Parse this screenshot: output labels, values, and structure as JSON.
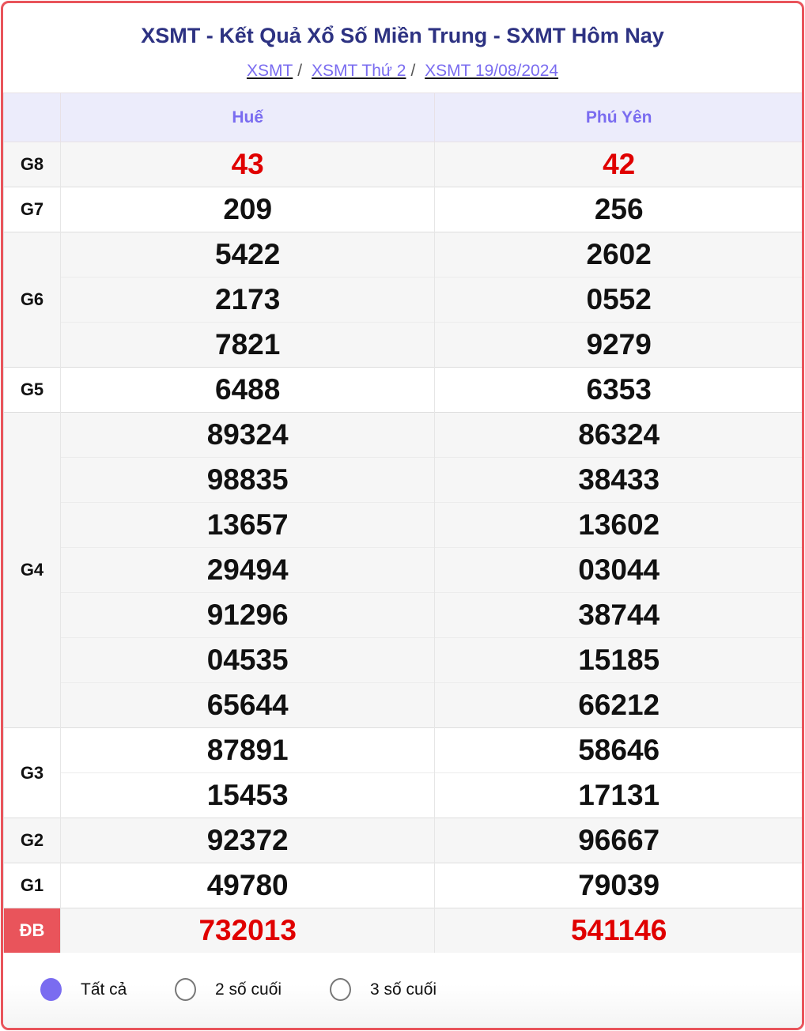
{
  "header": {
    "title": "XSMT - Kết Quả Xổ Số Miền Trung - SXMT Hôm Nay",
    "breadcrumb": [
      "XSMT",
      "XSMT Thứ 2",
      "XSMT 19/08/2024"
    ]
  },
  "table": {
    "columns": [
      "Huế",
      "Phú Yên"
    ],
    "prizes": [
      {
        "label": "G8",
        "hue": [
          "43"
        ],
        "phu_yen": [
          "42"
        ],
        "highlight": true
      },
      {
        "label": "G7",
        "hue": [
          "209"
        ],
        "phu_yen": [
          "256"
        ]
      },
      {
        "label": "G6",
        "hue": [
          "5422",
          "2173",
          "7821"
        ],
        "phu_yen": [
          "2602",
          "0552",
          "9279"
        ]
      },
      {
        "label": "G5",
        "hue": [
          "6488"
        ],
        "phu_yen": [
          "6353"
        ]
      },
      {
        "label": "G4",
        "hue": [
          "89324",
          "98835",
          "13657",
          "29494",
          "91296",
          "04535",
          "65644"
        ],
        "phu_yen": [
          "86324",
          "38433",
          "13602",
          "03044",
          "38744",
          "15185",
          "66212"
        ]
      },
      {
        "label": "G3",
        "hue": [
          "87891",
          "15453"
        ],
        "phu_yen": [
          "58646",
          "17131"
        ]
      },
      {
        "label": "G2",
        "hue": [
          "92372"
        ],
        "phu_yen": [
          "96667"
        ]
      },
      {
        "label": "G1",
        "hue": [
          "49780"
        ],
        "phu_yen": [
          "79039"
        ]
      },
      {
        "label": "ĐB",
        "hue": [
          "732013"
        ],
        "phu_yen": [
          "541146"
        ],
        "highlight": true,
        "special": true
      }
    ]
  },
  "filter": {
    "options": [
      "Tất cả",
      "2 số cuối",
      "3 số cuối"
    ],
    "selected": 0
  },
  "colors": {
    "accent": "#7a6cf0",
    "title": "#2d3282",
    "red": "#e00000",
    "border": "#e9545b"
  }
}
